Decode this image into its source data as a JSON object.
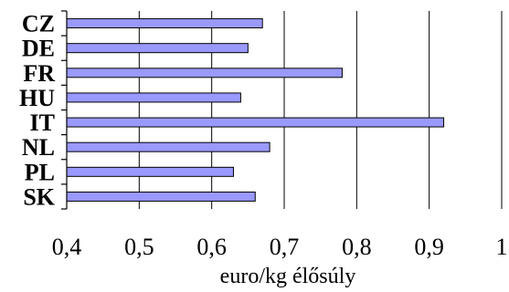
{
  "chart_data": {
    "type": "bar",
    "orientation": "horizontal",
    "categories": [
      "CZ",
      "DE",
      "FR",
      "HU",
      "IT",
      "NL",
      "PL",
      "SK"
    ],
    "values": [
      0.67,
      0.65,
      0.78,
      0.64,
      0.92,
      0.68,
      0.63,
      0.66
    ],
    "xlabel": "euro/kg élősúly",
    "xlim": [
      0.4,
      1
    ],
    "xticks": [
      0.4,
      0.5,
      0.6,
      0.7,
      0.8,
      0.9,
      1
    ],
    "xtick_labels": [
      "0,4",
      "0,5",
      "0,6",
      "0,7",
      "0,8",
      "0,9",
      "1"
    ],
    "grid": "vertical",
    "legend": "none",
    "colors": {
      "bar": "#9999ff",
      "outline": "#000000"
    }
  }
}
